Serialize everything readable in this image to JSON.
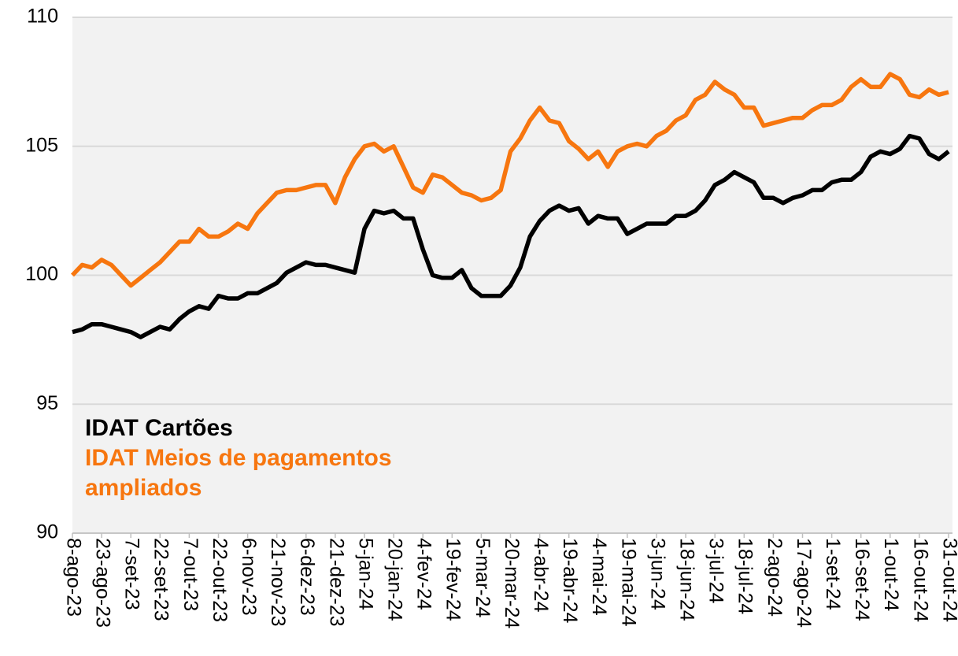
{
  "chart_data": {
    "type": "line",
    "x": [
      "2023-08-08",
      "2023-08-13",
      "2023-08-18",
      "2023-08-23",
      "2023-08-28",
      "2023-09-02",
      "2023-09-07",
      "2023-09-12",
      "2023-09-17",
      "2023-09-22",
      "2023-09-27",
      "2023-10-02",
      "2023-10-07",
      "2023-10-12",
      "2023-10-17",
      "2023-10-22",
      "2023-10-27",
      "2023-11-01",
      "2023-11-06",
      "2023-11-11",
      "2023-11-16",
      "2023-11-21",
      "2023-11-26",
      "2023-12-01",
      "2023-12-06",
      "2023-12-11",
      "2023-12-16",
      "2023-12-21",
      "2023-12-26",
      "2023-12-31",
      "2024-01-05",
      "2024-01-10",
      "2024-01-15",
      "2024-01-20",
      "2024-01-25",
      "2024-01-30",
      "2024-02-04",
      "2024-02-09",
      "2024-02-14",
      "2024-02-19",
      "2024-02-24",
      "2024-02-29",
      "2024-03-05",
      "2024-03-10",
      "2024-03-15",
      "2024-03-20",
      "2024-03-25",
      "2024-03-30",
      "2024-04-04",
      "2024-04-09",
      "2024-04-14",
      "2024-04-19",
      "2024-04-24",
      "2024-04-29",
      "2024-05-04",
      "2024-05-09",
      "2024-05-14",
      "2024-05-19",
      "2024-05-24",
      "2024-05-29",
      "2024-06-03",
      "2024-06-08",
      "2024-06-13",
      "2024-06-18",
      "2024-06-23",
      "2024-06-28",
      "2024-07-03",
      "2024-07-08",
      "2024-07-13",
      "2024-07-18",
      "2024-07-23",
      "2024-07-28",
      "2024-08-02",
      "2024-08-07",
      "2024-08-12",
      "2024-08-17",
      "2024-08-22",
      "2024-08-27",
      "2024-09-01",
      "2024-09-06",
      "2024-09-11",
      "2024-09-16",
      "2024-09-21",
      "2024-09-26",
      "2024-10-01",
      "2024-10-06",
      "2024-10-11",
      "2024-10-16",
      "2024-10-21",
      "2024-10-26",
      "2024-10-31"
    ],
    "series": [
      {
        "name": "IDAT Cartões",
        "color": "#000000",
        "values": [
          97.8,
          97.9,
          98.1,
          98.1,
          98.0,
          97.9,
          97.8,
          97.6,
          97.8,
          98.0,
          97.9,
          98.3,
          98.6,
          98.8,
          98.7,
          99.2,
          99.1,
          99.1,
          99.3,
          99.3,
          99.5,
          99.7,
          100.1,
          100.3,
          100.5,
          100.4,
          100.4,
          100.3,
          100.2,
          100.1,
          101.8,
          102.5,
          102.4,
          102.5,
          102.2,
          102.2,
          101.0,
          100.0,
          99.9,
          99.9,
          100.2,
          99.5,
          99.2,
          99.2,
          99.2,
          99.6,
          100.3,
          101.5,
          102.1,
          102.5,
          102.7,
          102.5,
          102.6,
          102.0,
          102.3,
          102.2,
          102.2,
          101.6,
          101.8,
          102.0,
          102.0,
          102.0,
          102.3,
          102.3,
          102.5,
          102.9,
          103.5,
          103.7,
          104.0,
          103.8,
          103.6,
          103.0,
          103.0,
          102.8,
          103.0,
          103.1,
          103.3,
          103.3,
          103.6,
          103.7,
          103.7,
          104.0,
          104.6,
          104.8,
          104.7,
          104.9,
          105.4,
          105.3,
          104.7,
          104.5,
          104.8
        ]
      },
      {
        "name": "IDAT Meios de pagamentos ampliados",
        "color": "#f7760f",
        "values": [
          100.0,
          100.4,
          100.3,
          100.6,
          100.4,
          100.0,
          99.6,
          99.9,
          100.2,
          100.5,
          100.9,
          101.3,
          101.3,
          101.8,
          101.5,
          101.5,
          101.7,
          102.0,
          101.8,
          102.4,
          102.8,
          103.2,
          103.3,
          103.3,
          103.4,
          103.5,
          103.5,
          102.8,
          103.8,
          104.5,
          105.0,
          105.1,
          104.8,
          105.0,
          104.2,
          103.4,
          103.2,
          103.9,
          103.8,
          103.5,
          103.2,
          103.1,
          102.9,
          103.0,
          103.3,
          104.8,
          105.3,
          106.0,
          106.5,
          106.0,
          105.9,
          105.2,
          104.9,
          104.5,
          104.8,
          104.2,
          104.8,
          105.0,
          105.1,
          105.0,
          105.4,
          105.6,
          106.0,
          106.2,
          106.8,
          107.0,
          107.5,
          107.2,
          107.0,
          106.5,
          106.5,
          105.8,
          105.9,
          106.0,
          106.1,
          106.1,
          106.4,
          106.6,
          106.6,
          106.8,
          107.3,
          107.6,
          107.3,
          107.3,
          107.8,
          107.6,
          107.0,
          106.9,
          107.2,
          107.0,
          107.1
        ]
      }
    ],
    "xlim": [
      "2023-08-08",
      "2024-10-31"
    ],
    "xticks": [
      {
        "value": "2023-08-08",
        "label": "8-ago-23"
      },
      {
        "value": "2023-08-23",
        "label": "23-ago-23"
      },
      {
        "value": "2023-09-07",
        "label": "7-set-23"
      },
      {
        "value": "2023-09-22",
        "label": "22-set-23"
      },
      {
        "value": "2023-10-07",
        "label": "7-out-23"
      },
      {
        "value": "2023-10-22",
        "label": "22-out-23"
      },
      {
        "value": "2023-11-06",
        "label": "6-nov-23"
      },
      {
        "value": "2023-11-21",
        "label": "21-nov-23"
      },
      {
        "value": "2023-12-06",
        "label": "6-dez-23"
      },
      {
        "value": "2023-12-21",
        "label": "21-dez-23"
      },
      {
        "value": "2024-01-05",
        "label": "5-jan-24"
      },
      {
        "value": "2024-01-20",
        "label": "20-jan-24"
      },
      {
        "value": "2024-02-04",
        "label": "4-fev-24"
      },
      {
        "value": "2024-02-19",
        "label": "19-fev-24"
      },
      {
        "value": "2024-03-05",
        "label": "5-mar-24"
      },
      {
        "value": "2024-03-20",
        "label": "20-mar-24"
      },
      {
        "value": "2024-04-04",
        "label": "4-abr-24"
      },
      {
        "value": "2024-04-19",
        "label": "19-abr-24"
      },
      {
        "value": "2024-05-04",
        "label": "4-mai-24"
      },
      {
        "value": "2024-05-19",
        "label": "19-mai-24"
      },
      {
        "value": "2024-06-03",
        "label": "3-jun-24"
      },
      {
        "value": "2024-06-18",
        "label": "18-jun-24"
      },
      {
        "value": "2024-07-03",
        "label": "3-jul-24"
      },
      {
        "value": "2024-07-18",
        "label": "18-jul-24"
      },
      {
        "value": "2024-08-02",
        "label": "2-ago-24"
      },
      {
        "value": "2024-08-17",
        "label": "17-ago-24"
      },
      {
        "value": "2024-09-01",
        "label": "1-set-24"
      },
      {
        "value": "2024-09-16",
        "label": "16-set-24"
      },
      {
        "value": "2024-10-01",
        "label": "1-out-24"
      },
      {
        "value": "2024-10-16",
        "label": "16-out-24"
      },
      {
        "value": "2024-10-31",
        "label": "31-out-24"
      }
    ],
    "ylim": [
      90,
      110
    ],
    "yticks": [
      90,
      95,
      100,
      105,
      110
    ],
    "grid": true,
    "legend": "lower left"
  }
}
